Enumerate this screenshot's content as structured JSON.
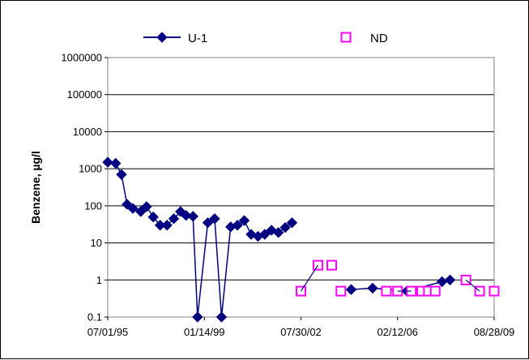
{
  "chart_data": {
    "type": "scatter",
    "title": "",
    "xlabel": "",
    "ylabel": "Benzene, µg/l",
    "yscale": "log",
    "ylim": [
      0.1,
      1000000
    ],
    "yticks": [
      "0.1",
      "1",
      "10",
      "100",
      "1000",
      "10000",
      "100000",
      "1000000"
    ],
    "xlim": [
      "1995-07-01",
      "2009-08-28"
    ],
    "xticks": [
      "07/01/95",
      "01/14/99",
      "07/30/02",
      "02/12/06",
      "08/28/09"
    ],
    "grid": "horizontal",
    "legend_position": "top",
    "series": [
      {
        "name": "U-1",
        "color": "#000080",
        "marker": "diamond",
        "line": true,
        "points": [
          [
            "1995-07-01",
            1500
          ],
          [
            "1995-10-15",
            1400
          ],
          [
            "1996-01-01",
            700
          ],
          [
            "1996-03-15",
            110
          ],
          [
            "1996-06-01",
            85
          ],
          [
            "1996-09-15",
            70
          ],
          [
            "1996-12-01",
            95
          ],
          [
            "1997-03-01",
            50
          ],
          [
            "1997-06-01",
            30
          ],
          [
            "1997-09-01",
            30
          ],
          [
            "1997-12-01",
            45
          ],
          [
            "1998-03-01",
            70
          ],
          [
            "1998-05-15",
            55
          ],
          [
            "1998-08-15",
            52
          ],
          [
            "1998-10-15",
            0.1
          ],
          [
            "1999-03-01",
            35
          ],
          [
            "1999-06-01",
            45
          ],
          [
            "1999-09-01",
            0.1
          ],
          [
            "2000-01-01",
            27
          ],
          [
            "2000-04-01",
            30
          ],
          [
            "2000-07-01",
            40
          ],
          [
            "2000-10-01",
            17
          ],
          [
            "2001-01-01",
            15
          ],
          [
            "2001-04-01",
            17
          ],
          [
            "2001-07-01",
            22
          ],
          [
            "2001-10-01",
            19
          ],
          [
            "2002-01-01",
            26
          ],
          [
            "2002-04-01",
            35
          ]
        ]
      },
      {
        "name": "U-1",
        "color": "#000080",
        "marker": "diamond",
        "line": true,
        "points": [
          [
            "2004-06-01",
            0.55
          ],
          [
            "2005-03-15",
            0.6
          ],
          [
            "2006-06-15",
            0.5
          ],
          [
            "2007-10-01",
            0.9
          ],
          [
            "2008-01-15",
            1
          ]
        ]
      },
      {
        "name": "ND",
        "color": "#ff00ff",
        "marker": "open-square",
        "line": false,
        "points": [
          [
            "2002-07-30",
            0.5
          ],
          [
            "2003-03-15",
            2.5
          ],
          [
            "2003-09-15",
            2.5
          ],
          [
            "2004-01-15",
            0.5
          ],
          [
            "2005-09-15",
            0.5
          ],
          [
            "2006-02-12",
            0.5
          ],
          [
            "2006-08-15",
            0.5
          ],
          [
            "2007-01-01",
            0.5
          ],
          [
            "2007-04-01",
            0.5
          ],
          [
            "2007-07-01",
            0.5
          ],
          [
            "2008-08-15",
            1
          ],
          [
            "2009-02-15",
            0.5
          ],
          [
            "2009-08-28",
            0.5
          ]
        ]
      }
    ],
    "legend": [
      {
        "label": "U-1",
        "color": "#000080",
        "marker": "diamond"
      },
      {
        "label": "ND",
        "color": "#ff00ff",
        "marker": "open-square"
      }
    ]
  }
}
